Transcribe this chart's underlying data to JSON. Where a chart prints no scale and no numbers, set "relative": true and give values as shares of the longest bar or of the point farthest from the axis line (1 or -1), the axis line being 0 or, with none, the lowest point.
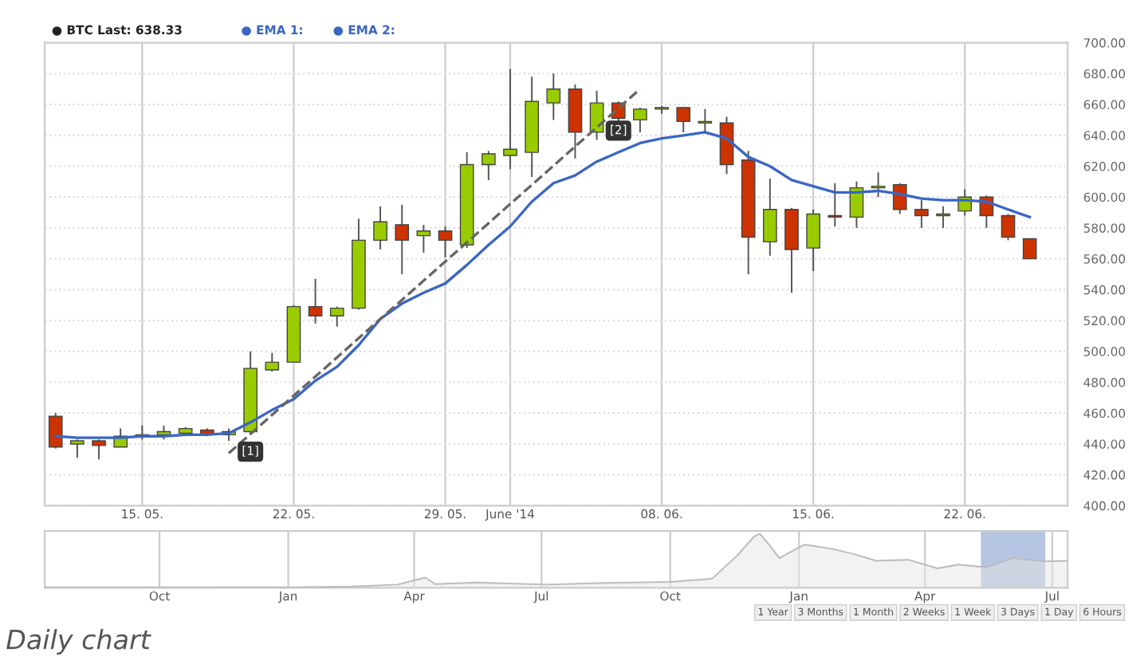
{
  "chart_data": [
    {
      "type": "candlestick",
      "annotations": [
        "● BTC Last: 638.33",
        "● EMA 1:",
        "● EMA 2:",
        {
          "text": "[1]",
          "x": "2014-05-20",
          "y": 435
        },
        {
          "text": "[2]",
          "x": "2014-06-06",
          "y": 643
        }
      ],
      "x": [
        "2014-05-11",
        "2014-05-12",
        "2014-05-13",
        "2014-05-14",
        "2014-05-15",
        "2014-05-16",
        "2014-05-17",
        "2014-05-18",
        "2014-05-19",
        "2014-05-20",
        "2014-05-21",
        "2014-05-22",
        "2014-05-23",
        "2014-05-24",
        "2014-05-25",
        "2014-05-26",
        "2014-05-27",
        "2014-05-28",
        "2014-05-29",
        "2014-05-30",
        "2014-05-31",
        "2014-06-01",
        "2014-06-02",
        "2014-06-03",
        "2014-06-04",
        "2014-06-05",
        "2014-06-06",
        "2014-06-07",
        "2014-06-08",
        "2014-06-09",
        "2014-06-10",
        "2014-06-11",
        "2014-06-12",
        "2014-06-13",
        "2014-06-14",
        "2014-06-15",
        "2014-06-16",
        "2014-06-17",
        "2014-06-18",
        "2014-06-19",
        "2014-06-20",
        "2014-06-21",
        "2014-06-22",
        "2014-06-23",
        "2014-06-24",
        "2014-06-25"
      ],
      "ohlc": [
        [
          458,
          460,
          437,
          438
        ],
        [
          440,
          443,
          431,
          442
        ],
        [
          442,
          443,
          430,
          439
        ],
        [
          438,
          450,
          438,
          445
        ],
        [
          445,
          452,
          443,
          446
        ],
        [
          446,
          452,
          443,
          448
        ],
        [
          447,
          451,
          445,
          450
        ],
        [
          449,
          450,
          445,
          446
        ],
        [
          446,
          450,
          442,
          448
        ],
        [
          448,
          500,
          446,
          489
        ],
        [
          488,
          499,
          487,
          493
        ],
        [
          493,
          530,
          493,
          529
        ],
        [
          529,
          547,
          518,
          523
        ],
        [
          523,
          529,
          516,
          528
        ],
        [
          528,
          586,
          527,
          572
        ],
        [
          572,
          594,
          566,
          584
        ],
        [
          582,
          595,
          550,
          572
        ],
        [
          575,
          582,
          564,
          578
        ],
        [
          578,
          581,
          561,
          572
        ],
        [
          569,
          629,
          567,
          621
        ],
        [
          621,
          630,
          611,
          628
        ],
        [
          627,
          683,
          618,
          631
        ],
        [
          629,
          678,
          613,
          662
        ],
        [
          661,
          680,
          650,
          670
        ],
        [
          670,
          673,
          625,
          642
        ],
        [
          642,
          669,
          637,
          661
        ],
        [
          661,
          662,
          649,
          651
        ],
        [
          650,
          658,
          642,
          657
        ],
        [
          657,
          659,
          654,
          658
        ],
        [
          658,
          658,
          642,
          649
        ],
        [
          648,
          657,
          642,
          649
        ],
        [
          648,
          652,
          615,
          621
        ],
        [
          624,
          630,
          550,
          574
        ],
        [
          571,
          612,
          562,
          592
        ],
        [
          592,
          593,
          538,
          566
        ],
        [
          567,
          592,
          552,
          589
        ],
        [
          588,
          609,
          581,
          587
        ],
        [
          587,
          610,
          580,
          606
        ],
        [
          606,
          616,
          600,
          607
        ],
        [
          608,
          609,
          589,
          592
        ],
        [
          592,
          598,
          580,
          588
        ],
        [
          588,
          594,
          580,
          589
        ],
        [
          591,
          605,
          588,
          600
        ],
        [
          600,
          601,
          580,
          588
        ],
        [
          588,
          589,
          572,
          574
        ],
        [
          573,
          573,
          560,
          560
        ]
      ],
      "colors": [
        "#cc3300",
        "#99cc00",
        "#cc3300",
        "#99cc00",
        "#99cc00",
        "#99cc00",
        "#99cc00",
        "#cc3300",
        "#99cc00",
        "#99cc00",
        "#99cc00",
        "#99cc00",
        "#cc3300",
        "#99cc00",
        "#99cc00",
        "#99cc00",
        "#cc3300",
        "#99cc00",
        "#cc3300",
        "#99cc00",
        "#99cc00",
        "#99cc00",
        "#99cc00",
        "#99cc00",
        "#cc3300",
        "#99cc00",
        "#cc3300",
        "#99cc00",
        "#99cc00",
        "#cc3300",
        "#99cc00",
        "#cc3300",
        "#cc3300",
        "#99cc00",
        "#cc3300",
        "#99cc00",
        "#cc3300",
        "#99cc00",
        "#99cc00",
        "#cc3300",
        "#cc3300",
        "#99cc00",
        "#99cc00",
        "#cc3300",
        "#cc3300",
        "#cc3300"
      ],
      "series": [
        {
          "type": "line",
          "color": "#3a66c4",
          "values": [
            445,
            444,
            444,
            444,
            445,
            445,
            446,
            446,
            447,
            454,
            462,
            469,
            481,
            490,
            504,
            521,
            531,
            538,
            544,
            556,
            569,
            581,
            597,
            609,
            614,
            623,
            629,
            635,
            638,
            640,
            642,
            638,
            626,
            620,
            611,
            607,
            603,
            603,
            604,
            602,
            599,
            598,
            598,
            597,
            592,
            587
          ]
        },
        {
          "type": "line",
          "color": "#666666",
          "line_style": "dashed",
          "x": [
            "2014-05-19",
            "2014-06-07"
          ],
          "values": [
            434,
            670
          ]
        }
      ],
      "xlim": [
        "2014-05-10T12:00",
        "2014-06-26T18:00"
      ],
      "xticks": [
        {
          "value": "2014-05-15",
          "label": "15. 05."
        },
        {
          "value": "2014-05-22",
          "label": "22. 05."
        },
        {
          "value": "2014-05-29",
          "label": "29. 05."
        },
        {
          "value": "2014-06-01",
          "label": "June '14"
        },
        {
          "value": "2014-06-08",
          "label": "08. 06."
        },
        {
          "value": "2014-06-15",
          "label": "15. 06."
        },
        {
          "value": "2014-06-22",
          "label": "22. 06."
        }
      ],
      "ylim": [
        400,
        700
      ],
      "yticks": [
        {
          "value": 400,
          "label": "400.00"
        },
        {
          "value": 420,
          "label": "420.00"
        },
        {
          "value": 440,
          "label": "440.00"
        },
        {
          "value": 460,
          "label": "460.00"
        },
        {
          "value": 480,
          "label": "480.00"
        },
        {
          "value": 500,
          "label": "500.00"
        },
        {
          "value": 520,
          "label": "520.00"
        },
        {
          "value": 540,
          "label": "540.00"
        },
        {
          "value": 560,
          "label": "560.00"
        },
        {
          "value": 580,
          "label": "580.00"
        },
        {
          "value": 600,
          "label": "600.00"
        },
        {
          "value": 620,
          "label": "620.00"
        },
        {
          "value": 640,
          "label": "640.00"
        },
        {
          "value": 660,
          "label": "660.00"
        },
        {
          "value": 680,
          "label": "680.00"
        },
        {
          "value": 700,
          "label": "700.00"
        }
      ],
      "grid": true
    },
    {
      "type": "area",
      "relative": true,
      "tick_labels": "x",
      "x": [
        "2012-07-11",
        "2012-10-01",
        "2013-01-01",
        "2013-02-15",
        "2013-03-20",
        "2013-04-09",
        "2013-04-16",
        "2013-05-15",
        "2013-07-05",
        "2013-08-15",
        "2013-10-01",
        "2013-10-31",
        "2013-11-18",
        "2013-11-30",
        "2013-12-04",
        "2013-12-10",
        "2013-12-18",
        "2013-12-25",
        "2014-01-05",
        "2014-01-25",
        "2014-02-10",
        "2014-02-25",
        "2014-03-20",
        "2014-04-10",
        "2014-04-25",
        "2014-05-15",
        "2014-06-03",
        "2014-06-25",
        "2014-07-12"
      ],
      "values": [
        0.01,
        0.01,
        0.012,
        0.025,
        0.06,
        0.19,
        0.07,
        0.1,
        0.06,
        0.09,
        0.11,
        0.17,
        0.6,
        0.95,
        1.0,
        0.82,
        0.55,
        0.65,
        0.8,
        0.72,
        0.62,
        0.5,
        0.52,
        0.36,
        0.43,
        0.38,
        0.55,
        0.49,
        0.5
      ],
      "color": "#bbbbbb",
      "bands": [
        {
          "axis": "x",
          "from": "2014-05-11",
          "to": "2014-06-26",
          "color": "#6b8cc4"
        }
      ],
      "xlim": [
        "2012-07-11",
        "2014-07-12"
      ],
      "xticks": [
        {
          "value": "2012-10-01",
          "label": "Oct"
        },
        {
          "value": "2013-01-01",
          "label": "Jan"
        },
        {
          "value": "2013-04-01",
          "label": "Apr"
        },
        {
          "value": "2013-07-01",
          "label": "Jul"
        },
        {
          "value": "2013-10-01",
          "label": "Oct"
        },
        {
          "value": "2014-01-01",
          "label": "Jan"
        },
        {
          "value": "2014-04-01",
          "label": "Apr"
        },
        {
          "value": "2014-07-01",
          "label": "Jul"
        }
      ],
      "grid": "x",
      "annotations": [
        "1 Year",
        "3 Months",
        "1 Month",
        "2 Weeks",
        "1 Week",
        "3 Days",
        "1 Day",
        "6 Hours",
        "Daily chart"
      ]
    }
  ]
}
